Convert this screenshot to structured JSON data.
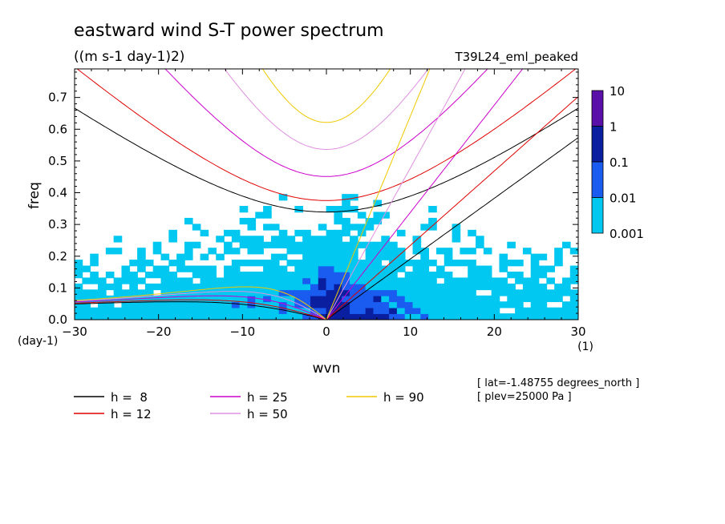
{
  "chart_data": {
    "type": "heatmap",
    "title": "eastward wind S-T power spectrum",
    "subtitle": "((m s-1 day-1)2)",
    "run_label": "T39L24_eml_peaked",
    "xlabel": "wvn",
    "x_unit": "(1)",
    "ylabel": "freq",
    "y_unit": "(day-1)",
    "xlim": [
      -30,
      30
    ],
    "ylim": [
      0,
      0.79
    ],
    "x_ticks": [
      -30,
      -20,
      -10,
      0,
      10,
      20,
      30
    ],
    "y_ticks": [
      0.0,
      0.1,
      0.2,
      0.3,
      0.4,
      0.5,
      0.6,
      0.7
    ],
    "y_tick_labels": [
      "0.0",
      "0.1",
      "0.2",
      "0.3",
      "0.4",
      "0.5",
      "0.6",
      "0.7"
    ],
    "colorbar": {
      "levels": [
        "10",
        "1",
        "0.1",
        "0.01",
        "0.001"
      ],
      "colors": [
        "#5a0fa8",
        "#0a1fa0",
        "#1a5cf0",
        "#00c8f0",
        "#00f0ff"
      ]
    },
    "series": [
      {
        "name": "h =  8",
        "h": 8,
        "color": "#000000"
      },
      {
        "name": "h = 12",
        "h": 12,
        "color": "#e00000"
      },
      {
        "name": "h = 25",
        "h": 25,
        "color": "#cc00cc"
      },
      {
        "name": "h = 50",
        "h": 50,
        "color": "#e090e0"
      },
      {
        "name": "h = 90",
        "h": 90,
        "color": "#f0c800"
      }
    ],
    "annotations": [
      "[ lat=-1.48755 degrees_north ]",
      "[ plev=25000 Pa ]"
    ]
  }
}
